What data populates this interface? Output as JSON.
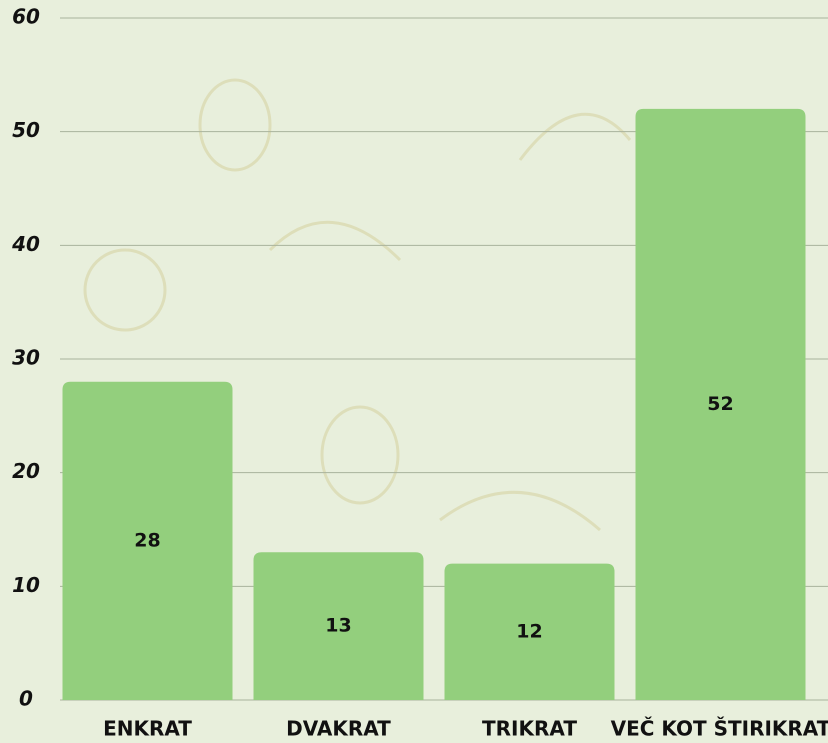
{
  "chart_data": {
    "type": "bar",
    "categories": [
      "ENKRAT",
      "DVAKRAT",
      "TRIKRAT",
      "VEČ KOT ŠTIRIKRAT"
    ],
    "values": [
      28,
      13,
      12,
      52
    ],
    "color": "#93cf7d",
    "ylim": [
      0,
      60
    ],
    "yticks": [
      0,
      10,
      20,
      30,
      40,
      50,
      60
    ],
    "grid": true
  }
}
